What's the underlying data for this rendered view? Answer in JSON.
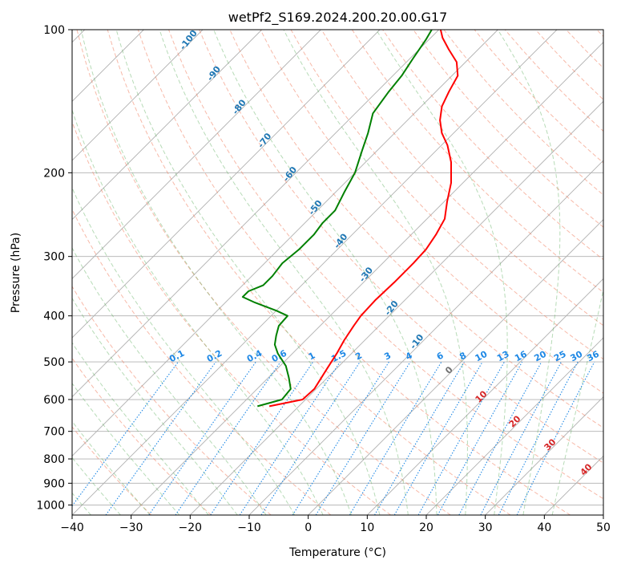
{
  "chart_data": {
    "type": "skewt",
    "title": "wetPf2_S169.2024.200.20.00.G17",
    "xlabel": "Temperature (°C)",
    "ylabel": "Pressure (hPa)",
    "xlim": [
      -40,
      50
    ],
    "ylim": [
      1050,
      100
    ],
    "x_ticks": [
      "−40",
      "−30",
      "−20",
      "−10",
      "0",
      "10",
      "20",
      "30",
      "40",
      "50"
    ],
    "y_ticks": [
      "100",
      "200",
      "300",
      "400",
      "500",
      "600",
      "700",
      "800",
      "900",
      "1000"
    ],
    "dry_adiabat_labels": [
      "-100",
      "-90",
      "-80",
      "-70",
      "-60",
      "-50",
      "-40",
      "-30",
      "-20",
      "-10"
    ],
    "moist_adiabat_labels": [
      "0",
      "10",
      "20",
      "30",
      "40"
    ],
    "mixing_ratio_labels": [
      "0.1",
      "0.2",
      "0.4",
      "0.6",
      "1",
      "1.5",
      "2",
      "3",
      "4",
      "6",
      "8",
      "10",
      "13",
      "16",
      "20",
      "25",
      "30",
      "36"
    ],
    "colors": {
      "temperature": "#ff0000",
      "dewpoint": "#008000",
      "isotherm": "#b0b0b0",
      "dry_adiabat": "#f08060",
      "moist_adiabat": "#60b060",
      "mixing_ratio": "#1e88e5",
      "dry_label": "#1f77b4",
      "moist_label": "#d62728",
      "mixing_label": "#1e88e5"
    },
    "series": [
      {
        "name": "Temperature",
        "points": [
          [
            620,
            -25.0
          ],
          [
            600,
            -20.5
          ],
          [
            570,
            -20.3
          ],
          [
            520,
            -21.5
          ],
          [
            480,
            -22.5
          ],
          [
            450,
            -23.5
          ],
          [
            420,
            -24.3
          ],
          [
            400,
            -24.8
          ],
          [
            370,
            -25.0
          ],
          [
            340,
            -24.8
          ],
          [
            310,
            -24.8
          ],
          [
            290,
            -25.0
          ],
          [
            270,
            -25.8
          ],
          [
            250,
            -27.0
          ],
          [
            230,
            -29.5
          ],
          [
            210,
            -32.0
          ],
          [
            190,
            -35.5
          ],
          [
            175,
            -39.0
          ],
          [
            165,
            -42.0
          ],
          [
            155,
            -44.5
          ],
          [
            145,
            -46.5
          ],
          [
            135,
            -47.8
          ],
          [
            125,
            -49.0
          ],
          [
            117,
            -51.5
          ],
          [
            110,
            -55.0
          ],
          [
            104,
            -58.0
          ],
          [
            100,
            -59.7
          ]
        ]
      },
      {
        "name": "Dewpoint",
        "points": [
          [
            620,
            -27.0
          ],
          [
            600,
            -24.0
          ],
          [
            570,
            -24.3
          ],
          [
            540,
            -26.5
          ],
          [
            510,
            -29.0
          ],
          [
            480,
            -32.5
          ],
          [
            460,
            -34.5
          ],
          [
            440,
            -35.8
          ],
          [
            420,
            -37.0
          ],
          [
            400,
            -37.2
          ],
          [
            390,
            -40.0
          ],
          [
            375,
            -45.0
          ],
          [
            365,
            -48.0
          ],
          [
            355,
            -48.0
          ],
          [
            345,
            -46.5
          ],
          [
            330,
            -46.5
          ],
          [
            310,
            -47.0
          ],
          [
            290,
            -46.5
          ],
          [
            270,
            -46.5
          ],
          [
            255,
            -47.0
          ],
          [
            240,
            -47.0
          ],
          [
            220,
            -48.5
          ],
          [
            200,
            -50.0
          ],
          [
            180,
            -52.5
          ],
          [
            165,
            -54.5
          ],
          [
            150,
            -57.0
          ],
          [
            135,
            -58.0
          ],
          [
            125,
            -58.5
          ],
          [
            115,
            -59.5
          ],
          [
            105,
            -60.5
          ],
          [
            100,
            -61.2
          ]
        ]
      }
    ]
  }
}
